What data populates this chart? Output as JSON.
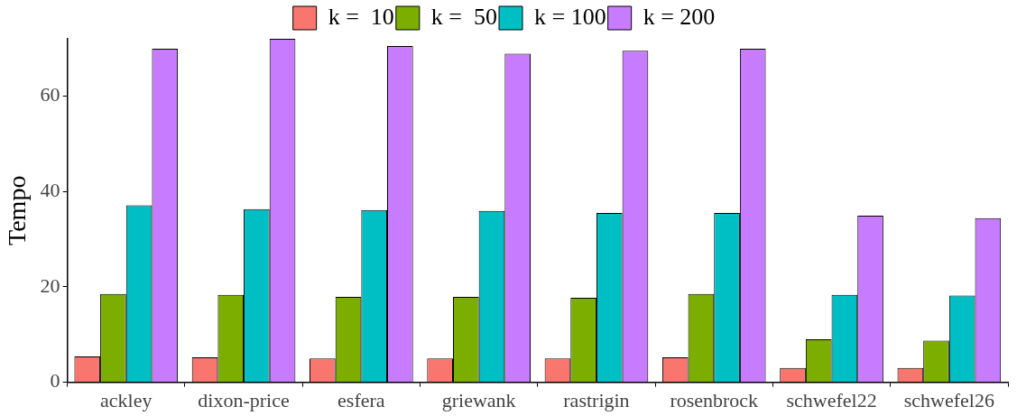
{
  "chart_data": {
    "type": "bar",
    "ylabel": "Tempo",
    "categories": [
      "ackley",
      "dixon-price",
      "esfera",
      "griewank",
      "rastrigin",
      "rosenbrock",
      "schwefel22",
      "schwefel26"
    ],
    "series": [
      {
        "name": "k =  10",
        "color": "#f8766d",
        "values": [
          5.4,
          5.2,
          5.0,
          5.0,
          5.0,
          5.2,
          3.0,
          3.0
        ]
      },
      {
        "name": "k =  50",
        "color": "#7cae00",
        "values": [
          18.5,
          18.3,
          17.9,
          17.9,
          17.7,
          18.5,
          9.0,
          8.7
        ]
      },
      {
        "name": "k = 100",
        "color": "#00bfc4",
        "values": [
          37.1,
          36.3,
          36.1,
          35.9,
          35.5,
          35.5,
          18.3,
          18.2
        ]
      },
      {
        "name": "k = 200",
        "color": "#c77cff",
        "values": [
          69.9,
          72.0,
          70.5,
          68.9,
          69.5,
          69.9,
          34.9,
          34.4
        ]
      }
    ],
    "ylim": [
      0,
      72
    ],
    "yticks": [
      0,
      20,
      40,
      60
    ],
    "grid": false,
    "legend": "top"
  }
}
